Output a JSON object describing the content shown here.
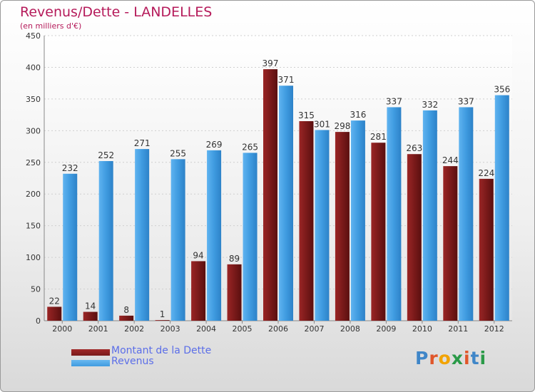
{
  "header": {
    "title": "Revenus/Dette - LANDELLES",
    "subtitle": "(en milliers d'€)"
  },
  "colors": {
    "title": "#b51a5a",
    "dette": "#7a1a1a",
    "revenus": "#3f9be0",
    "legend_text": "#5b6ee8"
  },
  "chart_data": {
    "type": "bar",
    "categories": [
      "2000",
      "2001",
      "2002",
      "2003",
      "2004",
      "2005",
      "2006",
      "2007",
      "2008",
      "2009",
      "2010",
      "2011",
      "2012"
    ],
    "series": [
      {
        "name": "Montant de la Dette",
        "values": [
          22,
          14,
          8,
          1,
          94,
          89,
          397,
          315,
          298,
          281,
          263,
          244,
          224
        ]
      },
      {
        "name": "Revenus",
        "values": [
          232,
          252,
          271,
          255,
          269,
          265,
          371,
          301,
          316,
          337,
          332,
          337,
          356
        ]
      }
    ],
    "title": "Revenus/Dette - LANDELLES",
    "ylabel": "(en milliers d'€)",
    "ylim": [
      0,
      450
    ],
    "yticks": [
      0,
      50,
      100,
      150,
      200,
      250,
      300,
      350,
      400,
      450
    ],
    "grid": true,
    "legend_position": "bottom-left"
  },
  "legend": {
    "items": [
      {
        "label": "Montant de la Dette",
        "icon": "dark-red-bar"
      },
      {
        "label": "Revenus",
        "icon": "blue-bar"
      }
    ]
  },
  "logo": {
    "text": "Proxiti",
    "letters": [
      "P",
      "r",
      "o",
      "x",
      "i",
      "t",
      "i"
    ],
    "colors": [
      "#3f86c8",
      "#e0562a",
      "#f2a300",
      "#2a9a48",
      "#e0562a",
      "#3f86c8",
      "#2a9a48"
    ]
  }
}
